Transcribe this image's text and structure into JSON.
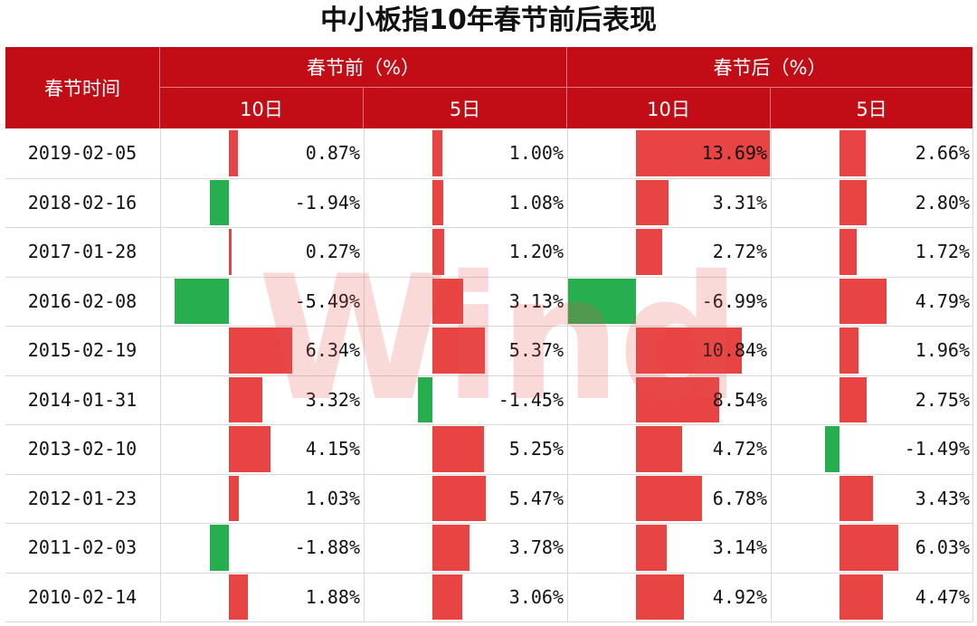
{
  "title": "中小板指10年春节前后表现",
  "headers": {
    "date": "春节时间",
    "before": "春节前（%）",
    "after": "春节后（%）",
    "d10": "10日",
    "d5": "5日"
  },
  "watermark": "Wind",
  "colors": {
    "header": "#c20d17",
    "positive": "#e84444",
    "negative": "#27ae4f"
  },
  "chart_data": {
    "type": "table",
    "columns": [
      "春节时间",
      "春节前 10日",
      "春节前 5日",
      "春节后 10日",
      "春节后 5日"
    ],
    "rows": [
      {
        "date": "2019-02-05",
        "values": [
          0.87,
          1.0,
          13.69,
          2.66
        ],
        "labels": [
          "0.87%",
          "1.00%",
          "13.69%",
          "2.66%"
        ]
      },
      {
        "date": "2018-02-16",
        "values": [
          -1.94,
          1.08,
          3.31,
          2.8
        ],
        "labels": [
          "-1.94%",
          "1.08%",
          "3.31%",
          "2.80%"
        ]
      },
      {
        "date": "2017-01-28",
        "values": [
          0.27,
          1.2,
          2.72,
          1.72
        ],
        "labels": [
          "0.27%",
          "1.20%",
          "2.72%",
          "1.72%"
        ]
      },
      {
        "date": "2016-02-08",
        "values": [
          -5.49,
          3.13,
          -6.99,
          4.79
        ],
        "labels": [
          "-5.49%",
          "3.13%",
          "-6.99%",
          "4.79%"
        ]
      },
      {
        "date": "2015-02-19",
        "values": [
          6.34,
          5.37,
          10.84,
          1.96
        ],
        "labels": [
          "6.34%",
          "5.37%",
          "10.84%",
          "1.96%"
        ]
      },
      {
        "date": "2014-01-31",
        "values": [
          3.32,
          -1.45,
          8.54,
          2.75
        ],
        "labels": [
          "3.32%",
          "-1.45%",
          "8.54%",
          "2.75%"
        ]
      },
      {
        "date": "2013-02-10",
        "values": [
          4.15,
          5.25,
          4.72,
          -1.49
        ],
        "labels": [
          "4.15%",
          "5.25%",
          "4.72%",
          "-1.49%"
        ]
      },
      {
        "date": "2012-01-23",
        "values": [
          1.03,
          5.47,
          6.78,
          3.43
        ],
        "labels": [
          "1.03%",
          "5.47%",
          "6.78%",
          "3.43%"
        ]
      },
      {
        "date": "2011-02-03",
        "values": [
          -1.88,
          3.78,
          3.14,
          6.03
        ],
        "labels": [
          "-1.88%",
          "3.78%",
          "3.14%",
          "6.03%"
        ]
      },
      {
        "date": "2010-02-14",
        "values": [
          1.88,
          3.06,
          4.92,
          4.47
        ],
        "labels": [
          "1.88%",
          "3.06%",
          "4.92%",
          "4.47%"
        ]
      }
    ]
  }
}
